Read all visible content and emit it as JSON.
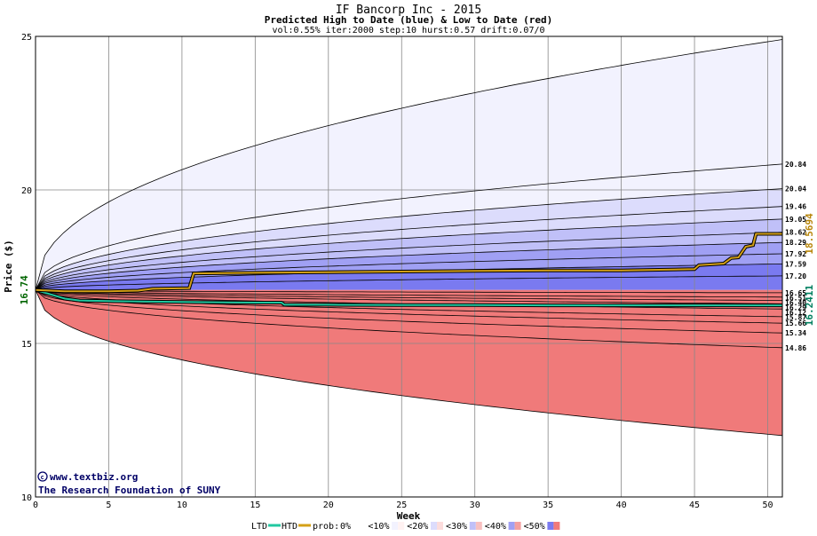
{
  "chart_data": {
    "type": "area",
    "title": "IF Bancorp Inc - 2015",
    "subtitle": "Predicted High to Date (blue) &  Low to Date (red)",
    "params": "vol:0.55% iter:2000 step:10 hurst:0.57 drift:0.07/0",
    "xlabel": "Week",
    "ylabel": "Price ($)",
    "xlim": [
      0,
      51
    ],
    "ylim": [
      10,
      25
    ],
    "x_ticks": [
      0,
      5,
      10,
      15,
      20,
      25,
      30,
      35,
      40,
      45,
      50
    ],
    "y_ticks": [
      10,
      15,
      20,
      25
    ],
    "start_price": 16.74,
    "start_price_label": "16.74",
    "high_end_label": "18.5694",
    "low_end_label": "16.2411",
    "credit_lines": [
      "www.textbiz.org",
      "The Research Foundation of SUNY"
    ],
    "blue_percentile_levels": [
      {
        "end": 24.9,
        "label": ""
      },
      {
        "end": 20.84,
        "label": "20.84"
      },
      {
        "end": 20.04,
        "label": "20.04"
      },
      {
        "end": 19.46,
        "label": "19.46"
      },
      {
        "end": 19.05,
        "label": "19.05"
      },
      {
        "end": 18.62,
        "label": "18.62"
      },
      {
        "end": 18.29,
        "label": "18.29"
      },
      {
        "end": 17.92,
        "label": "17.92"
      },
      {
        "end": 17.59,
        "label": "17.59"
      },
      {
        "end": 17.2,
        "label": "17.20"
      }
    ],
    "red_percentile_levels": [
      {
        "end": 16.65,
        "label": "16.65"
      },
      {
        "end": 16.51,
        "label": "16.51"
      },
      {
        "end": 16.4,
        "label": "16.40"
      },
      {
        "end": 16.29,
        "label": "16.29"
      },
      {
        "end": 16.12,
        "label": "16.12"
      },
      {
        "end": 15.87,
        "label": "15.87"
      },
      {
        "end": 15.66,
        "label": "15.66"
      },
      {
        "end": 15.34,
        "label": "15.34"
      },
      {
        "end": 14.86,
        "label": "14.86"
      },
      {
        "end": 12.0,
        "label": ""
      }
    ],
    "high_to_date": {
      "name": "HTD",
      "color": "#d4a017",
      "points": [
        [
          0,
          16.74
        ],
        [
          1,
          16.72
        ],
        [
          2,
          16.7
        ],
        [
          5,
          16.7
        ],
        [
          7,
          16.72
        ],
        [
          8,
          16.78
        ],
        [
          10.5,
          16.8
        ],
        [
          10.8,
          17.28
        ],
        [
          15,
          17.3
        ],
        [
          20,
          17.32
        ],
        [
          25,
          17.34
        ],
        [
          30,
          17.36
        ],
        [
          35,
          17.38
        ],
        [
          40,
          17.38
        ],
        [
          45,
          17.42
        ],
        [
          45.3,
          17.55
        ],
        [
          47,
          17.6
        ],
        [
          47.5,
          17.78
        ],
        [
          48,
          17.8
        ],
        [
          48.5,
          18.15
        ],
        [
          49,
          18.2
        ],
        [
          49.2,
          18.57
        ],
        [
          51,
          18.57
        ]
      ]
    },
    "low_to_date": {
      "name": "LTD",
      "color": "#20c8a0",
      "points": [
        [
          0,
          16.74
        ],
        [
          1,
          16.6
        ],
        [
          2,
          16.46
        ],
        [
          3,
          16.4
        ],
        [
          5,
          16.38
        ],
        [
          10,
          16.35
        ],
        [
          15,
          16.33
        ],
        [
          16.8,
          16.33
        ],
        [
          17,
          16.26
        ],
        [
          20,
          16.26
        ],
        [
          25,
          16.25
        ],
        [
          30,
          16.25
        ],
        [
          35,
          16.24
        ],
        [
          40,
          16.24
        ],
        [
          45,
          16.24
        ],
        [
          51,
          16.24
        ]
      ]
    },
    "legend": {
      "ltd": "LTD",
      "htd": "HTD",
      "prob_prefix": "prob:",
      "items": [
        {
          "label": "0%",
          "blue": "#ffffff",
          "red": "#ffffff"
        },
        {
          "label": "<10%",
          "blue": "#f2f2fe",
          "red": "#fff2f2"
        },
        {
          "label": "<20%",
          "blue": "#dcdcfc",
          "red": "#fcdcdc"
        },
        {
          "label": "<30%",
          "blue": "#c0c0f8",
          "red": "#f8c0c0"
        },
        {
          "label": "<40%",
          "blue": "#a0a0f4",
          "red": "#f4a0a0"
        },
        {
          "label": "<50%",
          "blue": "#7a7af0",
          "red": "#f07a7a"
        }
      ]
    },
    "grid": true,
    "legend_placement": "bottom"
  }
}
